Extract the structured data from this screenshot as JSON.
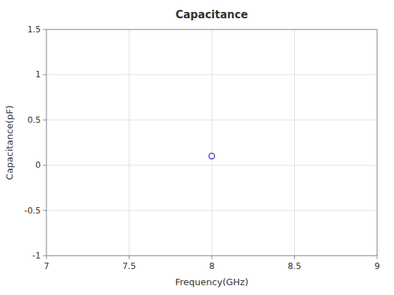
{
  "chart_data": {
    "type": "scatter",
    "title": "Capacitance",
    "x_label": "Frequency(GHz)",
    "y_label": "Capacitance(pF)",
    "x": [
      8.0
    ],
    "values": [
      0.1
    ],
    "color": "#4444cc",
    "marker": "circle",
    "xlim": [
      7,
      9
    ],
    "ylim": [
      -1,
      1.5
    ],
    "xticks": [
      7,
      7.5,
      8,
      8.5,
      9
    ],
    "yticks": [
      -1,
      -0.5,
      0,
      0.5,
      1,
      1.5
    ],
    "grid": true
  }
}
